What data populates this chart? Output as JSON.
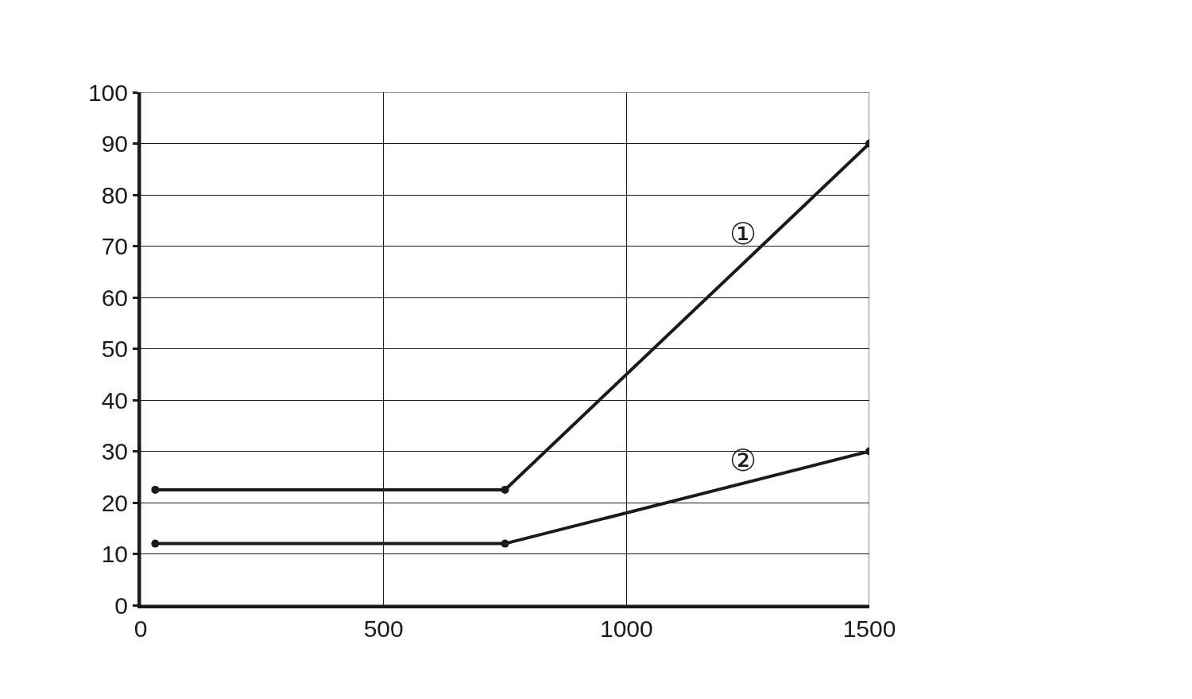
{
  "chart_data": {
    "type": "line",
    "x": [
      30,
      750,
      1500
    ],
    "series": [
      {
        "name": "①",
        "color": "#1a1a1a",
        "values": [
          22.5,
          22.5,
          90
        ]
      },
      {
        "name": "②",
        "color": "#1a1a1a",
        "values": [
          12,
          12,
          30
        ]
      }
    ],
    "xlim": [
      0,
      1500
    ],
    "xticks": [
      0,
      500,
      1000,
      1500
    ],
    "ylim": [
      0,
      100
    ],
    "yticks": [
      0,
      10,
      20,
      30,
      40,
      50,
      60,
      70,
      80,
      90,
      100
    ],
    "grid": true,
    "marker": "circle",
    "line_style": "solid",
    "legend": false
  }
}
